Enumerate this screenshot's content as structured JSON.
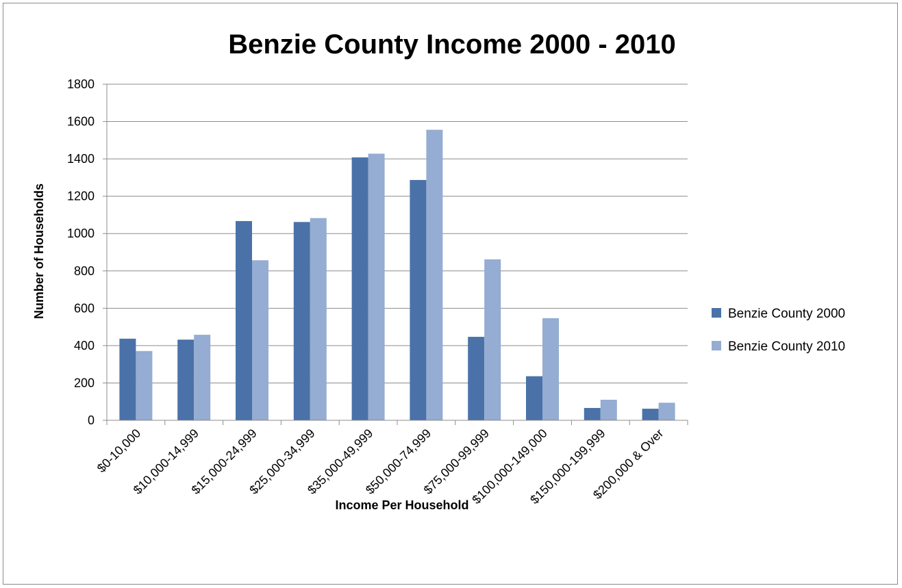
{
  "chart_data": {
    "type": "bar",
    "title": "Benzie County Income 2000 - 2010",
    "xlabel": "Income Per Household",
    "ylabel": "Number of Households",
    "ylim": [
      0,
      1800
    ],
    "yticks": [
      "0",
      "200",
      "400",
      "600",
      "800",
      "1000",
      "1200",
      "1400",
      "1600",
      "1800"
    ],
    "grid": true,
    "legend_position": "right",
    "categories": [
      "$0-10,000",
      "$10,000-14,999",
      "$15,000-24,999",
      "$25,000-34,999",
      "$35,000-49,999",
      "$50,000-74,999",
      "$75,000-99,999",
      "$100,000-149,000",
      "$150,000-199,999",
      "$200,000 & Over"
    ],
    "series": [
      {
        "name": "Benzie County 2000",
        "color": "#4a72a8",
        "values": [
          437,
          432,
          1067,
          1062,
          1408,
          1287,
          447,
          236,
          66,
          62
        ]
      },
      {
        "name": "Benzie County 2010",
        "color": "#95acd3",
        "values": [
          371,
          458,
          857,
          1083,
          1428,
          1556,
          862,
          547,
          110,
          94
        ]
      }
    ]
  }
}
